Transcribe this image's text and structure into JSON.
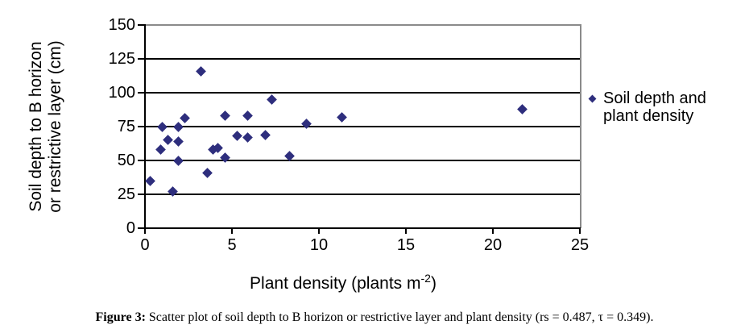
{
  "figure": {
    "caption_label": "Figure 3:",
    "caption_text": " Scatter plot of soil depth to B horizon or restrictive layer and plant density (rs = 0.487, τ = 0.349)."
  },
  "chart_data": {
    "type": "scatter",
    "title": "",
    "xlabel_prefix": "Plant density (plants m",
    "xlabel_sup": "-2",
    "xlabel_suffix": ")",
    "ylabel_line1": "Soil depth to B horizon",
    "ylabel_line2": "or restrictive layer (cm)",
    "xlim": [
      0,
      25
    ],
    "ylim": [
      0,
      150
    ],
    "xticks": [
      0,
      5,
      10,
      15,
      20,
      25
    ],
    "yticks": [
      0,
      25,
      50,
      75,
      100,
      125,
      150
    ],
    "grid": "horizontal major gridlines, black; plot border gray; legend right, no frame",
    "legend_line1": "Soil depth and",
    "legend_line2": "plant density",
    "series_name": "Soil depth and plant density",
    "marker": "diamond",
    "marker_color": "#2E2E7D",
    "axis_color": "#000000",
    "gridline_color": "#000000",
    "plot_border_color": "#8a8a8a",
    "points": [
      {
        "x": 0.3,
        "y": 35
      },
      {
        "x": 0.9,
        "y": 58
      },
      {
        "x": 1.0,
        "y": 75
      },
      {
        "x": 1.3,
        "y": 65
      },
      {
        "x": 1.6,
        "y": 27
      },
      {
        "x": 1.9,
        "y": 50
      },
      {
        "x": 1.9,
        "y": 64
      },
      {
        "x": 1.9,
        "y": 75
      },
      {
        "x": 2.3,
        "y": 81
      },
      {
        "x": 3.2,
        "y": 116
      },
      {
        "x": 3.6,
        "y": 41
      },
      {
        "x": 3.9,
        "y": 58
      },
      {
        "x": 4.2,
        "y": 59
      },
      {
        "x": 4.6,
        "y": 52
      },
      {
        "x": 4.6,
        "y": 83
      },
      {
        "x": 5.3,
        "y": 68
      },
      {
        "x": 5.9,
        "y": 67
      },
      {
        "x": 5.9,
        "y": 83
      },
      {
        "x": 6.9,
        "y": 69
      },
      {
        "x": 7.3,
        "y": 95
      },
      {
        "x": 8.3,
        "y": 53
      },
      {
        "x": 9.3,
        "y": 77
      },
      {
        "x": 11.3,
        "y": 82
      },
      {
        "x": 21.7,
        "y": 88
      }
    ]
  }
}
